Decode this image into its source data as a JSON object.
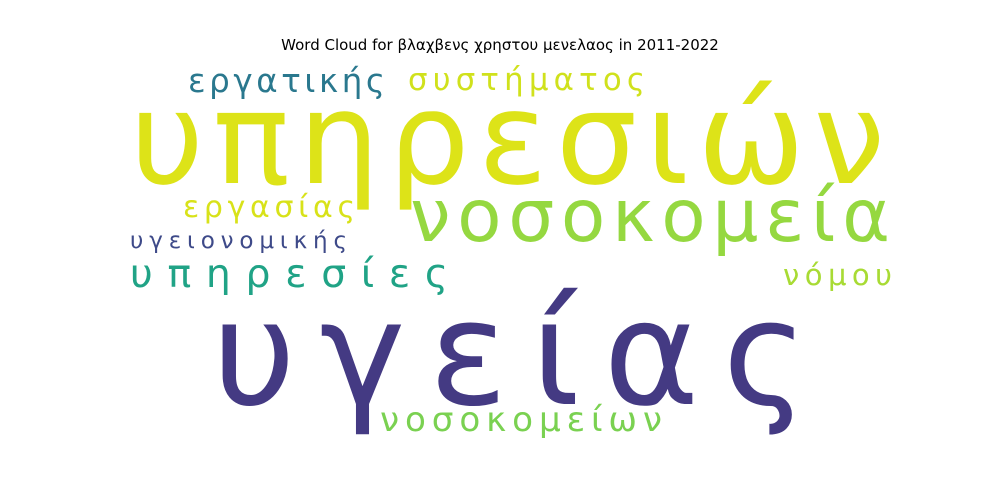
{
  "chart_data": {
    "type": "wordcloud",
    "title": "Word Cloud for βλαχβενς χρηστου μενελαος in 2011-2022",
    "words": [
      {
        "text": "υπηρεσιών",
        "color": "#dde318"
      },
      {
        "text": "υγείας",
        "color": "#443a83"
      },
      {
        "text": "νοσοκομεία",
        "color": "#95d840"
      },
      {
        "text": "υπηρεσίες",
        "color": "#20a386"
      },
      {
        "text": "νοσοκομείων",
        "color": "#7ad151"
      },
      {
        "text": "εργατικής",
        "color": "#2a788e"
      },
      {
        "text": "συστήματος",
        "color": "#d0e11c"
      },
      {
        "text": "εργασίας",
        "color": "#d8e219"
      },
      {
        "text": "υγειονομικής",
        "color": "#3e4a89"
      },
      {
        "text": "νόμου",
        "color": "#a8db34"
      }
    ]
  }
}
